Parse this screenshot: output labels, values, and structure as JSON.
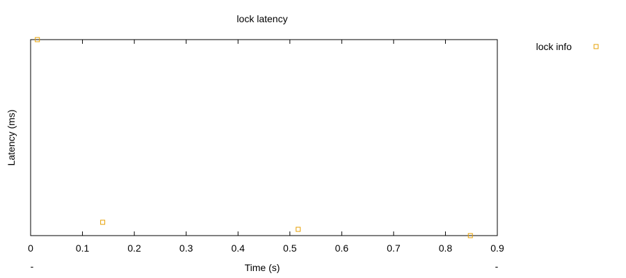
{
  "chart_data": {
    "type": "scatter",
    "title": "lock latency",
    "xlabel": "Time (s)",
    "ylabel": "Latency (ms)",
    "xlim": [
      0,
      0.9
    ],
    "ylim": [
      0,
      1
    ],
    "x_ticks": [
      "0",
      "0.1",
      "0.2",
      "0.3",
      "0.4",
      "0.5",
      "0.6",
      "0.7",
      "0.8",
      "0.9"
    ],
    "x_tick_values": [
      0,
      0.1,
      0.2,
      0.3,
      0.4,
      0.5,
      0.6,
      0.7,
      0.8,
      0.9
    ],
    "y_ticks_shown": false,
    "grid": false,
    "legend_position": "outside-top-right",
    "series": [
      {
        "name": "lock info",
        "color": "#e69f00",
        "marker": "square-open",
        "x": [
          0.013,
          0.139,
          0.516,
          0.848
        ],
        "y": [
          1.0,
          0.068,
          0.032,
          0.0
        ]
      }
    ],
    "dangling_marks": [
      "-",
      "-"
    ]
  }
}
